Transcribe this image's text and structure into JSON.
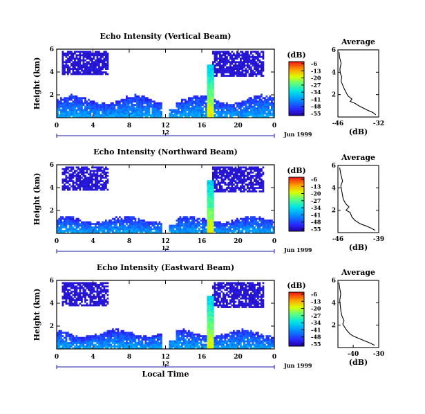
{
  "chart_data": [
    {
      "type": "heatmap",
      "title": "Echo Intensity (Vertical Beam)",
      "ylabel": "Height (km)",
      "x_ticks": [
        "0",
        "4",
        "8",
        "12",
        "16",
        "20",
        "0"
      ],
      "xlim": [
        0,
        24
      ],
      "y_ticks": [
        "6",
        "4",
        "2"
      ],
      "ylim": [
        0,
        6
      ],
      "date_marker": "12",
      "date_label": "Jun 1999",
      "colorbar": {
        "unit": "(dB)",
        "ticks": [
          "-6",
          "-13",
          "-20",
          "-27",
          "-34",
          "-41",
          "-48",
          "-55"
        ]
      },
      "profile": {
        "title": "Average",
        "xlabel": "(dB)",
        "x_ticks": [
          "-46",
          "-32"
        ],
        "xlim": [
          -46,
          -32
        ],
        "y_ticks": [
          "6",
          "4",
          "2"
        ],
        "ylim": [
          0,
          6
        ],
        "points": [
          [
            -45.6,
            5.8
          ],
          [
            -45.4,
            5.3
          ],
          [
            -44.9,
            4.8
          ],
          [
            -45.3,
            4.3
          ],
          [
            -45.2,
            3.9
          ],
          [
            -44.7,
            3.6
          ],
          [
            -44.9,
            3.2
          ],
          [
            -44.3,
            2.8
          ],
          [
            -43.8,
            2.5
          ],
          [
            -43.2,
            2.2
          ],
          [
            -42.6,
            1.9
          ],
          [
            -41.2,
            1.6
          ],
          [
            -41.8,
            1.4
          ],
          [
            -40.0,
            1.2
          ],
          [
            -38.8,
            1.0
          ],
          [
            -37.3,
            0.8
          ],
          [
            -35.8,
            0.6
          ],
          [
            -34.0,
            0.4
          ],
          [
            -33.0,
            0.2
          ]
        ]
      }
    },
    {
      "type": "heatmap",
      "title": "Echo Intensity (Northward Beam)",
      "ylabel": "Height (km)",
      "x_ticks": [
        "0",
        "4",
        "8",
        "12",
        "16",
        "20",
        "0"
      ],
      "xlim": [
        0,
        24
      ],
      "y_ticks": [
        "6",
        "4",
        "2"
      ],
      "ylim": [
        0,
        6
      ],
      "date_marker": "12",
      "date_label": "Jun 1999",
      "colorbar": {
        "unit": "(dB)",
        "ticks": [
          "-6",
          "-13",
          "-20",
          "-27",
          "-34",
          "-41",
          "-48",
          "-55"
        ]
      },
      "profile": {
        "title": "Average",
        "xlabel": "(dB)",
        "x_ticks": [
          "-46",
          "-39"
        ],
        "xlim": [
          -46,
          -39
        ],
        "y_ticks": [
          "6",
          "4",
          "2"
        ],
        "ylim": [
          0,
          6
        ],
        "points": [
          [
            -45.7,
            5.8
          ],
          [
            -45.5,
            5.2
          ],
          [
            -45.2,
            4.6
          ],
          [
            -45.5,
            4.2
          ],
          [
            -45.3,
            3.6
          ],
          [
            -45.1,
            3.0
          ],
          [
            -44.7,
            2.6
          ],
          [
            -44.1,
            2.3
          ],
          [
            -44.6,
            2.0
          ],
          [
            -43.9,
            1.8
          ],
          [
            -43.6,
            1.4
          ],
          [
            -43.1,
            1.1
          ],
          [
            -42.2,
            0.8
          ],
          [
            -41.2,
            0.6
          ],
          [
            -40.3,
            0.4
          ],
          [
            -39.6,
            0.2
          ]
        ]
      }
    },
    {
      "type": "heatmap",
      "title": "Echo Intensity (Eastward Beam)",
      "ylabel": "Height (km)",
      "xlabel": "Local Time",
      "x_ticks": [
        "0",
        "4",
        "8",
        "12",
        "16",
        "20",
        "0"
      ],
      "xlim": [
        0,
        24
      ],
      "y_ticks": [
        "6",
        "4",
        "2"
      ],
      "ylim": [
        0,
        6
      ],
      "date_marker": "12",
      "date_label": "Jun 1999",
      "colorbar": {
        "unit": "(dB)",
        "ticks": [
          "-6",
          "-13",
          "-20",
          "-27",
          "-34",
          "-41",
          "-48",
          "-55"
        ]
      },
      "profile": {
        "title": "Average",
        "xlabel": "(dB)",
        "x_ticks": [
          "-40",
          "-30"
        ],
        "xlim": [
          -46,
          -30
        ],
        "y_ticks": [
          "6",
          "4",
          "2"
        ],
        "ylim": [
          0,
          6
        ],
        "points": [
          [
            -45.6,
            5.8
          ],
          [
            -45.3,
            5.3
          ],
          [
            -44.9,
            4.8
          ],
          [
            -45.3,
            4.2
          ],
          [
            -45.0,
            3.6
          ],
          [
            -44.8,
            3.2
          ],
          [
            -44.4,
            2.8
          ],
          [
            -43.6,
            2.4
          ],
          [
            -44.1,
            2.1
          ],
          [
            -43.3,
            1.8
          ],
          [
            -42.4,
            1.5
          ],
          [
            -41.2,
            1.2
          ],
          [
            -39.8,
            1.0
          ],
          [
            -37.6,
            0.8
          ],
          [
            -35.6,
            0.6
          ],
          [
            -33.4,
            0.4
          ],
          [
            -31.6,
            0.2
          ]
        ]
      }
    }
  ]
}
